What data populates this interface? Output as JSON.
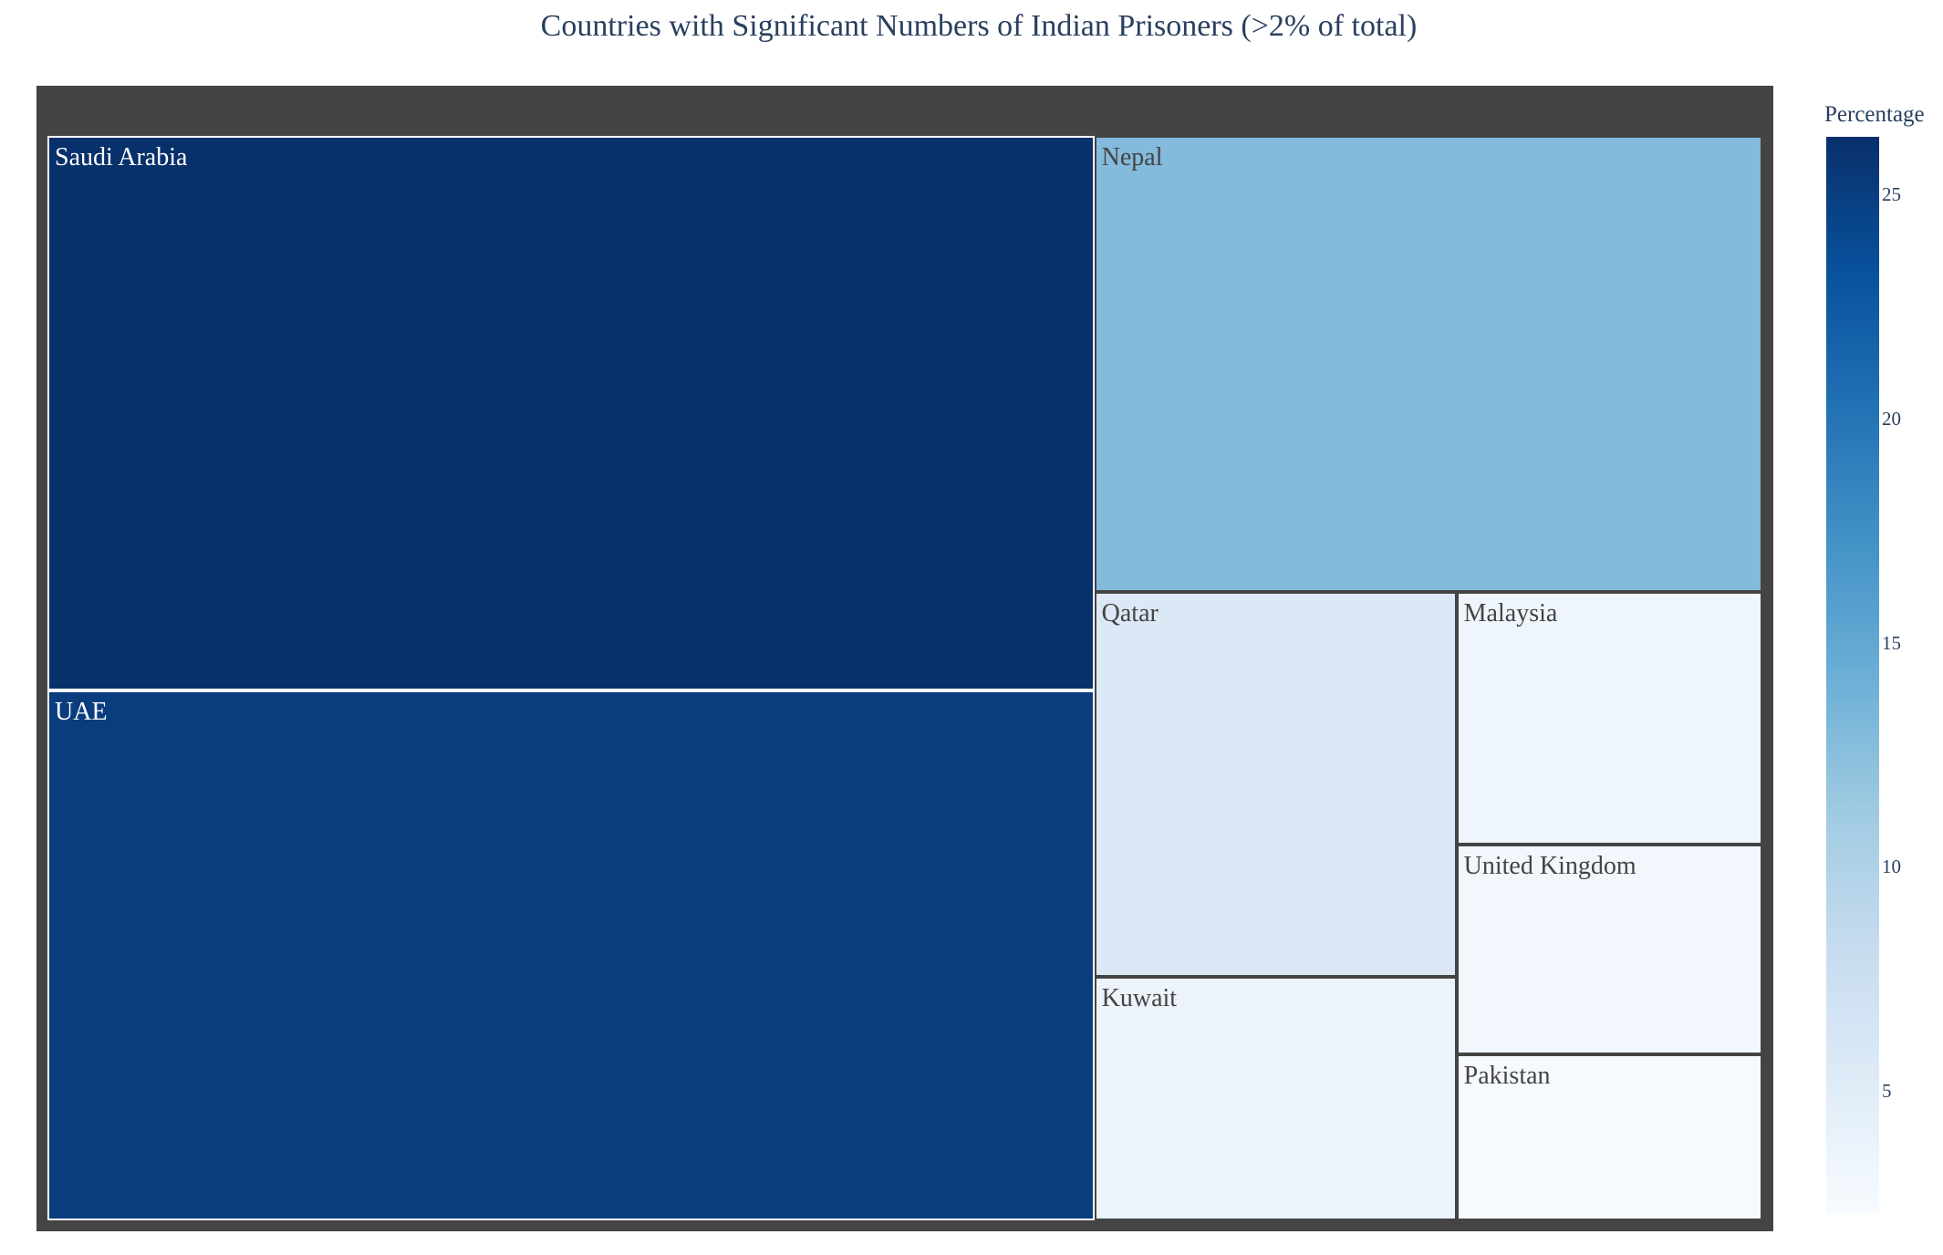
{
  "chart_data": {
    "type": "treemap",
    "title": "Countries with Significant Numbers of Indian Prisoners (>2% of total)",
    "colorbar": {
      "title": "Percentage",
      "ticks": [
        "5",
        "10",
        "15",
        "20",
        "25"
      ],
      "range": [
        2.3,
        26.3
      ],
      "colorscale": [
        "#f7fbff",
        "#deebf7",
        "#c6dbef",
        "#9ecae1",
        "#6baed6",
        "#4292c6",
        "#2171b5",
        "#08519c",
        "#08306b"
      ]
    },
    "items": [
      {
        "label": "Saudi Arabia",
        "value": 26.3,
        "color": "#08306b"
      },
      {
        "label": "UAE",
        "value": 25.1,
        "color": "#093d7e"
      },
      {
        "label": "Nepal",
        "value": 13.8,
        "color": "#84badb"
      },
      {
        "label": "Qatar",
        "value": 6.3,
        "color": "#dce8f5"
      },
      {
        "label": "Kuwait",
        "value": 4.0,
        "color": "#ecf3fb"
      },
      {
        "label": "Malaysia",
        "value": 3.5,
        "color": "#eef5fc"
      },
      {
        "label": "United Kingdom",
        "value": 2.9,
        "color": "#f2f7fd"
      },
      {
        "label": "Pakistan",
        "value": 2.3,
        "color": "#f6faff"
      }
    ]
  }
}
